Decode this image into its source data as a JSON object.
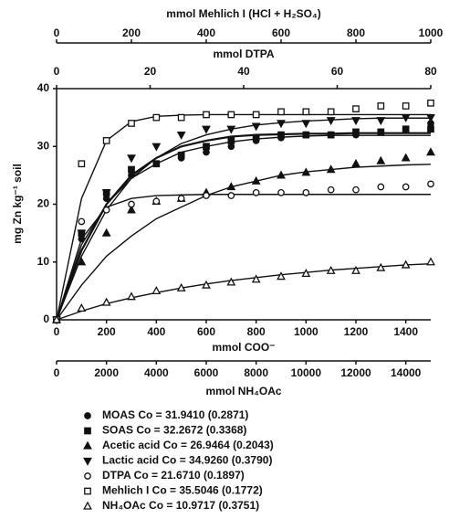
{
  "chart_data": {
    "type": "scatter",
    "x_axes": [
      {
        "position": "top",
        "label": "mmol Mehlich I (HCl + H₂SO₄)",
        "xlim": [
          0,
          1000
        ],
        "xticks": [
          0,
          200,
          400,
          600,
          800,
          1000
        ]
      },
      {
        "position": "top",
        "label": "mmol DTPA",
        "xlim": [
          0,
          80
        ],
        "xticks": [
          0,
          20,
          40,
          60,
          80
        ]
      },
      {
        "position": "bottom",
        "label": "mmol COO⁻",
        "xlim": [
          0,
          1500
        ],
        "xticks": [
          0,
          200,
          400,
          600,
          800,
          1000,
          1200,
          1400
        ]
      },
      {
        "position": "bottom",
        "label": "mmol NH₄OAc",
        "xlim": [
          0,
          15000
        ],
        "xticks": [
          0,
          2000,
          4000,
          6000,
          8000,
          10000,
          12000,
          14000
        ]
      }
    ],
    "y_label": "mg Zn kg⁻¹ soil",
    "ylim": [
      0,
      40
    ],
    "yticks": [
      0,
      10,
      20,
      30,
      40
    ],
    "x": [
      0,
      100,
      200,
      300,
      400,
      500,
      600,
      700,
      800,
      900,
      1000,
      1100,
      1200,
      1300,
      1400,
      1500
    ],
    "series": [
      {
        "name": "MOAS Co = 31.9410 (0.2871)",
        "marker": "circle",
        "filled": true,
        "color": "#111",
        "values": [
          0,
          14,
          21,
          25,
          27,
          28,
          29,
          30,
          31,
          31.5,
          32,
          32,
          32,
          32.5,
          33,
          34
        ],
        "fit": [
          0,
          13,
          20,
          24.5,
          27,
          29,
          30,
          30.8,
          31.3,
          31.6,
          31.8,
          31.9,
          31.9,
          31.9,
          31.9,
          31.9
        ]
      },
      {
        "name": "SOAS Co = 32.2672 (0.3368)",
        "marker": "square",
        "filled": true,
        "color": "#111",
        "values": [
          0,
          15,
          22,
          26,
          27,
          28.5,
          30,
          31,
          31.5,
          32,
          32,
          32,
          32.5,
          32.5,
          33,
          33
        ],
        "fit": [
          0,
          12,
          20,
          25,
          28,
          30,
          31,
          31.7,
          32,
          32.1,
          32.2,
          32.2,
          32.3,
          32.3,
          32.3,
          32.3
        ]
      },
      {
        "name": "Acetic acid Co = 26.9464 (0.2043)",
        "marker": "triangle",
        "filled": true,
        "color": "#111",
        "values": [
          0,
          10,
          15,
          19,
          20.5,
          21,
          22,
          23,
          24,
          25,
          25.5,
          26,
          27,
          27.5,
          28,
          29
        ],
        "fit": [
          0,
          6,
          11,
          14.5,
          17.5,
          19.5,
          21.5,
          23,
          24,
          25,
          25.6,
          26,
          26.4,
          26.6,
          26.8,
          26.9
        ]
      },
      {
        "name": "Lactic acid Co = 34.9260 (0.3790)",
        "marker": "triangle-down",
        "filled": true,
        "color": "#111",
        "values": [
          0,
          15,
          22,
          28,
          30,
          32,
          33,
          33,
          33.5,
          34,
          34,
          34.5,
          34.5,
          34.5,
          35,
          35
        ],
        "fit": [
          0,
          11,
          19,
          24.5,
          28,
          30.5,
          32,
          33,
          33.7,
          34.1,
          34.4,
          34.6,
          34.8,
          34.9,
          34.9,
          34.9
        ]
      },
      {
        "name": "DTPA Co = 21.6710 (0.1897)",
        "marker": "circle",
        "filled": false,
        "color": "#111",
        "values": [
          0,
          17,
          19,
          20,
          20.5,
          21,
          21.5,
          21.5,
          22,
          22,
          22,
          22.5,
          22.5,
          23,
          23,
          23.5
        ],
        "fit": [
          0,
          14,
          19.5,
          21,
          21.5,
          21.6,
          21.7,
          21.7,
          21.7,
          21.7,
          21.7,
          21.7,
          21.7,
          21.7,
          21.7,
          21.7
        ]
      },
      {
        "name": "Mehlich I Co = 35.5046 (0.1772)",
        "marker": "square",
        "filled": false,
        "color": "#111",
        "values": [
          0,
          27,
          31,
          34,
          35,
          35,
          35.5,
          35.5,
          35.5,
          36,
          36,
          36,
          36.5,
          37,
          37,
          37.5
        ],
        "fit": [
          0,
          21,
          31,
          34.3,
          35.2,
          35.4,
          35.5,
          35.5,
          35.5,
          35.5,
          35.5,
          35.5,
          35.5,
          35.5,
          35.5,
          35.5
        ]
      },
      {
        "name": "NH₄OAc Co = 10.9717 (0.3751)",
        "marker": "triangle",
        "filled": false,
        "color": "#111",
        "values": [
          0,
          2,
          3,
          4,
          5,
          5.5,
          6,
          6.5,
          7,
          7.5,
          8,
          8.5,
          8.5,
          9,
          9.5,
          10
        ],
        "fit": [
          0,
          1.5,
          2.8,
          3.8,
          4.7,
          5.5,
          6.2,
          6.8,
          7.3,
          7.8,
          8.2,
          8.6,
          8.9,
          9.2,
          9.5,
          9.7
        ]
      }
    ]
  }
}
